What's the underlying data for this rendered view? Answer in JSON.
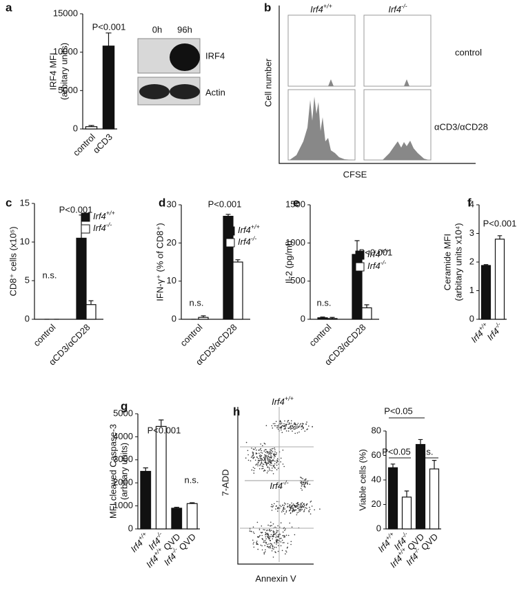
{
  "panels": {
    "a": {
      "blot": {
        "lanes": [
          "0h",
          "96h"
        ],
        "bands": [
          "IRF4",
          "Actin"
        ]
      }
    },
    "b": {
      "label": "b",
      "columns": [
        "Irf4+/+",
        "Irf4-/-"
      ],
      "rows": [
        "control",
        "αCD3/αCD28"
      ],
      "ylabel": "Cell number",
      "xlabel": "CFSE"
    },
    "h": {
      "label": "h",
      "rows": [
        "Irf4+/+",
        "Irf4-/-"
      ],
      "ylabel": "7-ADD",
      "xlabel": "Annexin V"
    }
  },
  "chart_data": [
    {
      "type": "bar",
      "label": "a",
      "ylabel": [
        "IRF4 MFI",
        "(arbitary units)"
      ],
      "categories": [
        "control",
        "αCD3"
      ],
      "values": [
        300,
        10800
      ],
      "errors": [
        150,
        1700
      ],
      "colors": [
        "#ffffff",
        "#111111"
      ],
      "ylim": [
        0,
        15000
      ],
      "yticks": [
        0,
        5000,
        10000,
        15000
      ],
      "annotations": [
        "P<0.001"
      ]
    },
    {
      "type": "bar",
      "label": "c",
      "ylabel": [
        "CD8⁺ cells (x10⁵)"
      ],
      "categories": [
        "control",
        "αCD3/αCD28"
      ],
      "series": [
        {
          "name": "Irf4+/+",
          "color": "#111111",
          "values": [
            0,
            10.5
          ],
          "errors": [
            0,
            3
          ]
        },
        {
          "name": "Irf4-/-",
          "color": "#ffffff",
          "values": [
            0,
            1.9
          ],
          "errors": [
            0,
            0.5
          ]
        }
      ],
      "ylim": [
        0,
        15
      ],
      "yticks": [
        0,
        5,
        10,
        15
      ],
      "annotations": [
        "P<0.001",
        "n.s."
      ]
    },
    {
      "type": "bar",
      "label": "d",
      "ylabel": [
        "IFN-γ⁺ (% of CD8⁺)"
      ],
      "categories": [
        "control",
        "αCD3/αCD28"
      ],
      "series": [
        {
          "name": "Irf4+/+",
          "color": "#111111",
          "values": [
            0,
            27
          ],
          "errors": [
            0,
            0.5
          ]
        },
        {
          "name": "Irf4-/-",
          "color": "#ffffff",
          "values": [
            0.5,
            15
          ],
          "errors": [
            0.4,
            0.6
          ]
        }
      ],
      "ylim": [
        0,
        30
      ],
      "yticks": [
        0,
        10,
        20,
        30
      ],
      "annotations": [
        "P<0.001",
        "n.s."
      ]
    },
    {
      "type": "bar",
      "label": "e",
      "ylabel": [
        "Il-2 (pg/ml)"
      ],
      "categories": [
        "control",
        "αCD3/αCD28"
      ],
      "series": [
        {
          "name": "Irf4+/+",
          "color": "#111111",
          "values": [
            20,
            850
          ],
          "errors": [
            10,
            180
          ]
        },
        {
          "name": "Irf4-/-",
          "color": "#ffffff",
          "values": [
            10,
            150
          ],
          "errors": [
            15,
            40
          ]
        }
      ],
      "ylim": [
        0,
        1500
      ],
      "yticks": [
        0,
        500,
        1000,
        1500
      ],
      "annotations": [
        "P<0.001",
        "n.s."
      ]
    },
    {
      "type": "bar",
      "label": "f",
      "ylabel": [
        "Ceramide MFI",
        "(arbitary units x10⁴)"
      ],
      "categories": [
        "Irf4+/+",
        "Irf4-/-"
      ],
      "values": [
        1.88,
        2.8
      ],
      "errors": [
        0.03,
        0.12
      ],
      "colors": [
        "#111111",
        "#ffffff"
      ],
      "ylim": [
        0,
        4
      ],
      "yticks": [
        0,
        1,
        2,
        3,
        4
      ],
      "annotations": [
        "P<0.001"
      ]
    },
    {
      "type": "bar",
      "label": "g",
      "ylabel": [
        "MFI cleaved Caspase-3",
        "(arbitary units)"
      ],
      "categories": [
        "Irf4+/+",
        "Irf4-/-",
        "Irf4+/+ QVD",
        "Irf4-/- QVD"
      ],
      "values": [
        2500,
        4450,
        900,
        1100
      ],
      "errors": [
        150,
        280,
        40,
        40
      ],
      "colors": [
        "#111111",
        "#ffffff",
        "#111111",
        "#ffffff"
      ],
      "ylim": [
        0,
        5000
      ],
      "yticks": [
        0,
        1000,
        2000,
        3000,
        4000,
        5000
      ],
      "annotations": [
        "P<0.001",
        "n.s."
      ]
    },
    {
      "type": "bar",
      "ylabel": [
        "Viable cells (%)"
      ],
      "categories": [
        "Irf4+/+",
        "Irf4-/-",
        "Irf4+/+ QVD",
        "Irf4-/- QVD"
      ],
      "values": [
        50,
        26,
        69,
        49
      ],
      "errors": [
        3,
        5,
        4,
        7
      ],
      "colors": [
        "#111111",
        "#ffffff",
        "#111111",
        "#ffffff"
      ],
      "ylim": [
        0,
        80
      ],
      "yticks": [
        0,
        20,
        40,
        60,
        80
      ],
      "annotations": [
        "P<0.05",
        "P<0.05",
        "n.s."
      ]
    }
  ]
}
